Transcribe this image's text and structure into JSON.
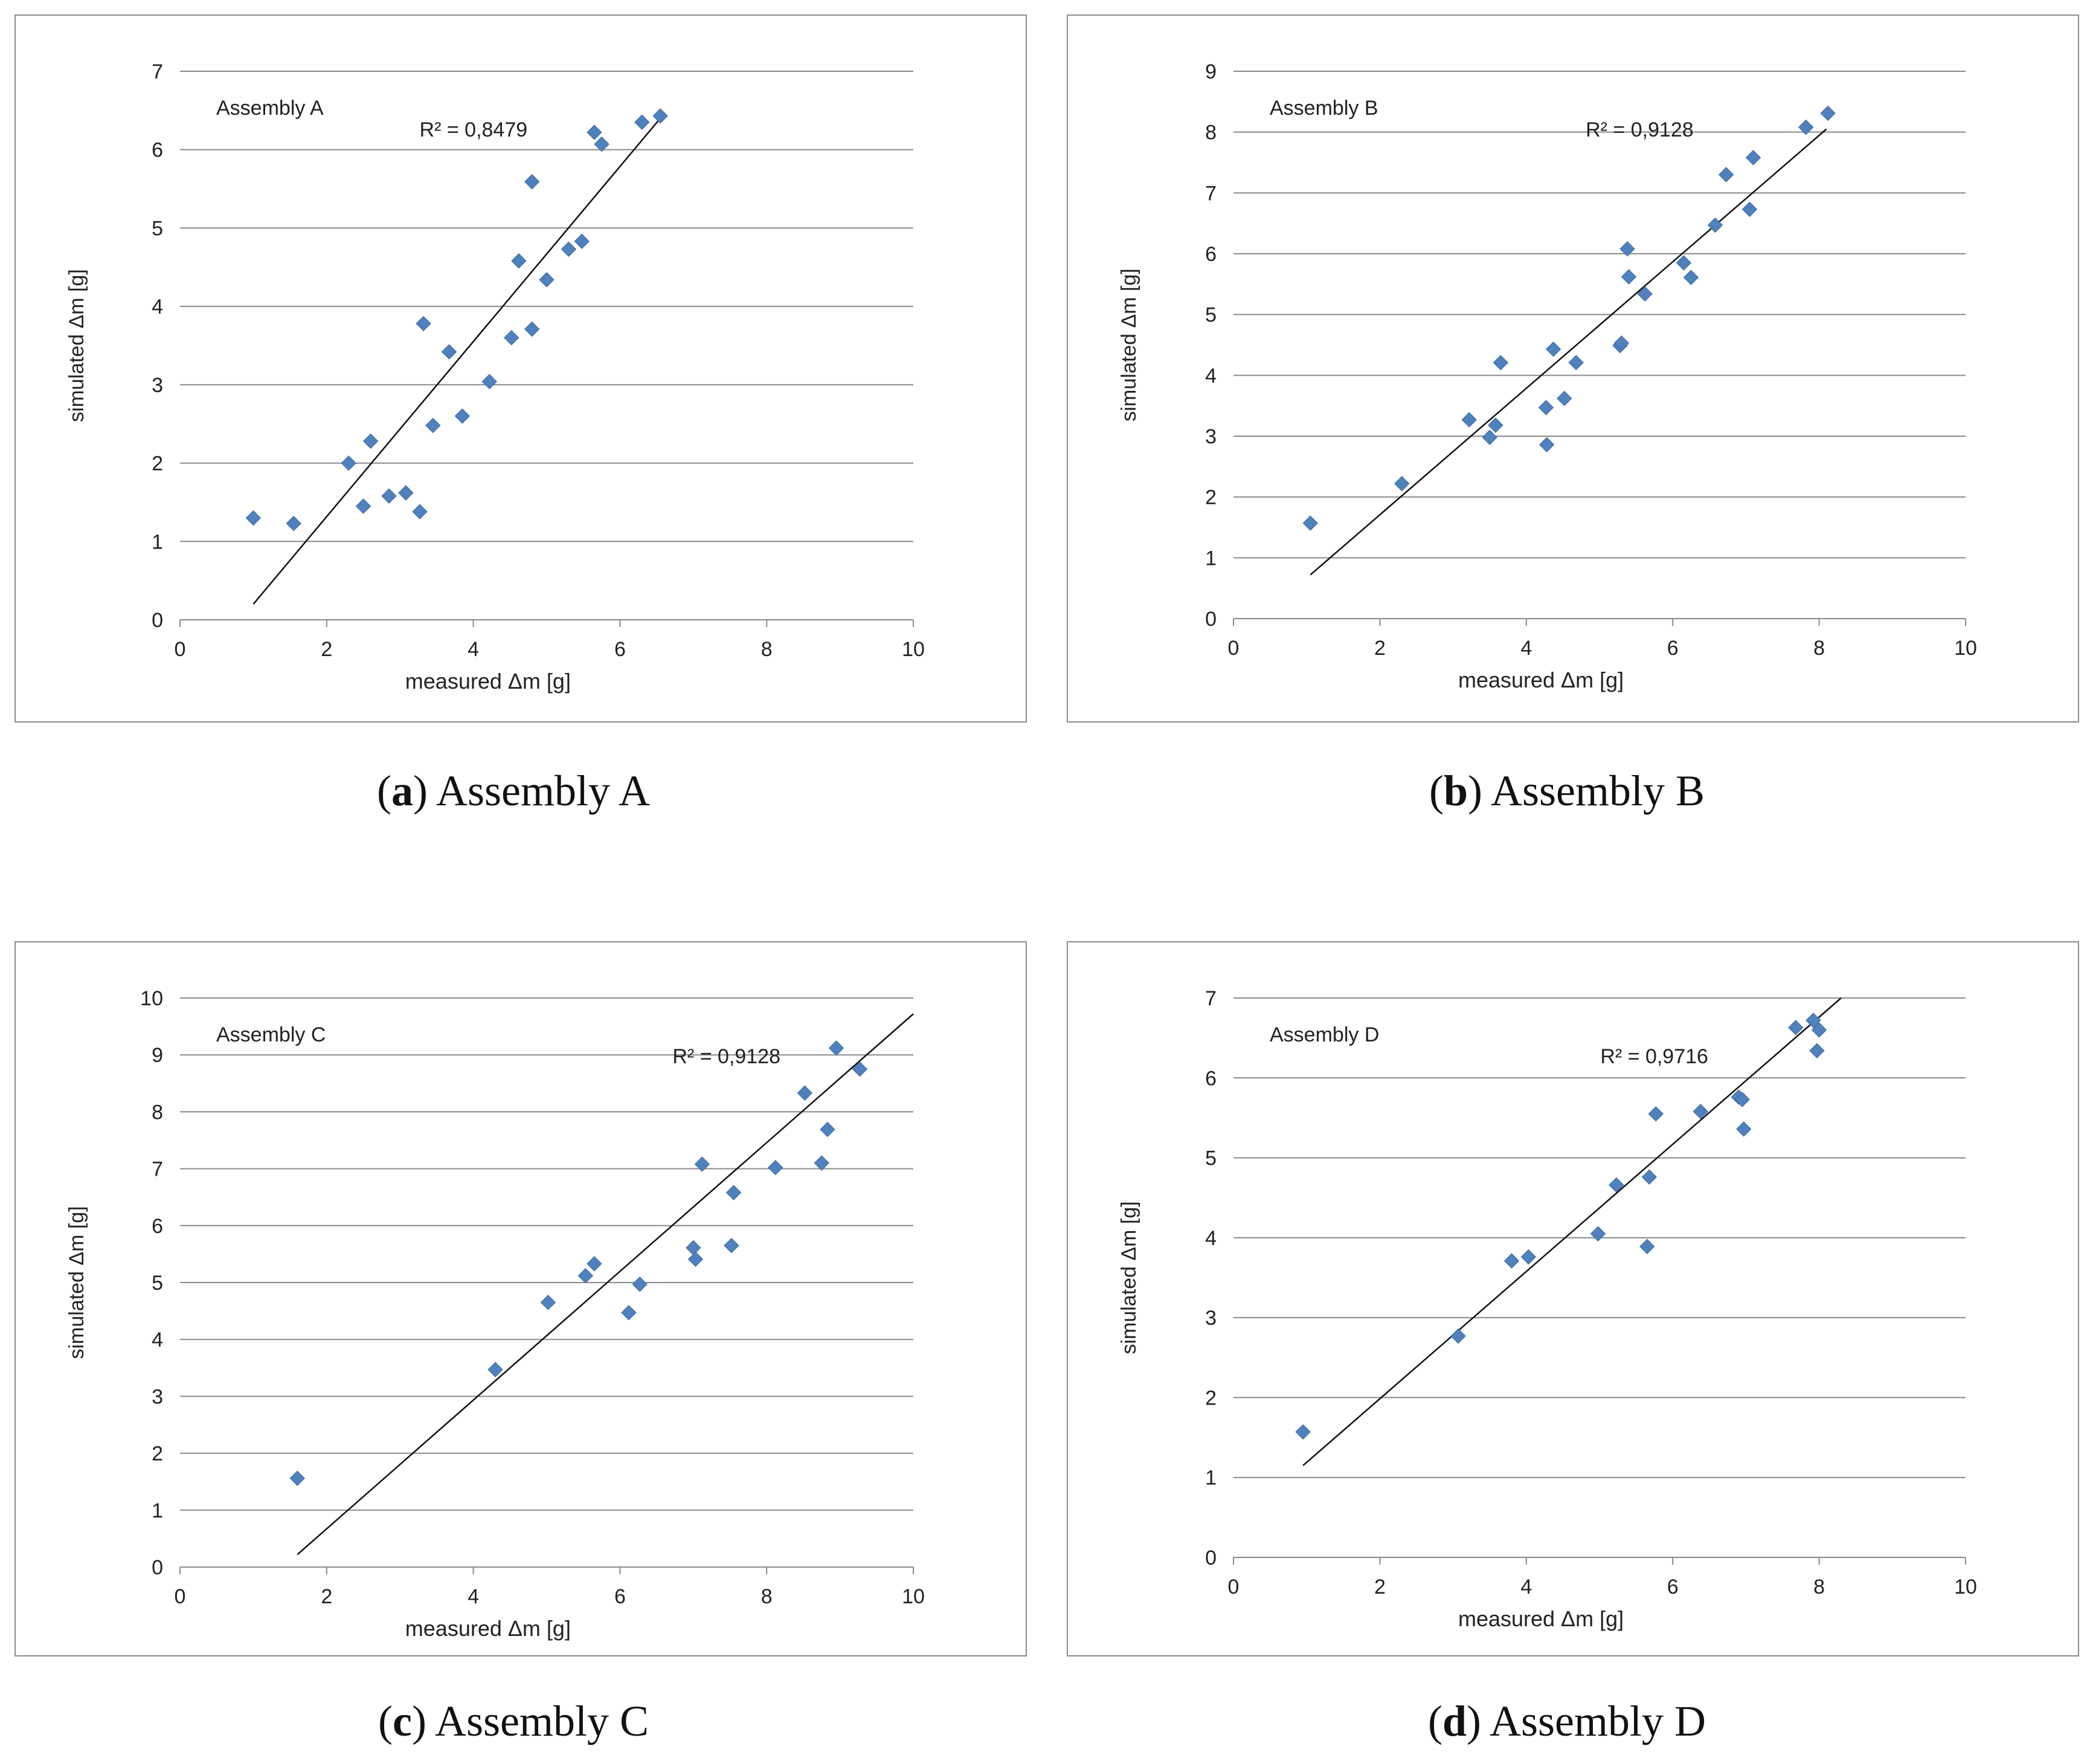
{
  "chart_data": [
    {
      "type": "scatter",
      "title": "Assembly A",
      "caption_letter": "a",
      "caption_text": "Assembly A",
      "xlabel": "measured Δm [g]",
      "ylabel": "simulated  Δm [g]",
      "xlim": [
        0,
        10
      ],
      "ylim": [
        0,
        7
      ],
      "xticks": [
        "0",
        "2",
        "4",
        "6",
        "8",
        "10"
      ],
      "yticks": [
        "0",
        "1",
        "2",
        "3",
        "4",
        "5",
        "6",
        "7"
      ],
      "r2_label": "R² = 0,8479",
      "trendline": {
        "x": [
          1.0,
          6.55
        ],
        "y": [
          0.2,
          6.4
        ]
      },
      "points": [
        [
          1.0,
          1.3
        ],
        [
          1.55,
          1.23
        ],
        [
          2.3,
          2.0
        ],
        [
          2.5,
          1.45
        ],
        [
          2.6,
          2.28
        ],
        [
          2.85,
          1.58
        ],
        [
          3.08,
          1.62
        ],
        [
          3.27,
          1.38
        ],
        [
          3.32,
          3.78
        ],
        [
          3.45,
          2.48
        ],
        [
          3.67,
          3.42
        ],
        [
          3.85,
          2.6
        ],
        [
          4.22,
          3.04
        ],
        [
          4.52,
          3.6
        ],
        [
          4.62,
          4.58
        ],
        [
          4.8,
          5.59
        ],
        [
          4.8,
          3.71
        ],
        [
          5.0,
          4.34
        ],
        [
          5.3,
          4.73
        ],
        [
          5.48,
          4.83
        ],
        [
          5.65,
          6.22
        ],
        [
          5.75,
          6.07
        ],
        [
          6.3,
          6.35
        ],
        [
          6.55,
          6.43
        ]
      ]
    },
    {
      "type": "scatter",
      "title": "Assembly B",
      "caption_letter": "b",
      "caption_text": "Assembly B",
      "xlabel": "measured Δm [g]",
      "ylabel": "simulated  Δm [g]",
      "xlim": [
        0,
        10
      ],
      "ylim": [
        0,
        9
      ],
      "xticks": [
        "0",
        "2",
        "4",
        "6",
        "8",
        "10"
      ],
      "yticks": [
        "0",
        "1",
        "2",
        "3",
        "4",
        "5",
        "6",
        "7",
        "8",
        "9"
      ],
      "r2_label": "R² = 0,9128",
      "trendline": {
        "x": [
          1.05,
          8.1
        ],
        "y": [
          0.72,
          8.05
        ]
      },
      "points": [
        [
          1.05,
          1.57
        ],
        [
          2.3,
          2.22
        ],
        [
          3.22,
          3.27
        ],
        [
          3.5,
          2.98
        ],
        [
          3.58,
          3.18
        ],
        [
          3.65,
          4.21
        ],
        [
          4.27,
          3.47
        ],
        [
          4.28,
          2.86
        ],
        [
          4.37,
          4.43
        ],
        [
          4.52,
          3.62
        ],
        [
          4.68,
          4.21
        ],
        [
          5.28,
          4.49
        ],
        [
          5.3,
          4.53
        ],
        [
          5.38,
          6.08
        ],
        [
          5.4,
          5.62
        ],
        [
          5.62,
          5.34
        ],
        [
          6.15,
          5.85
        ],
        [
          6.25,
          5.61
        ],
        [
          6.58,
          6.47
        ],
        [
          6.73,
          7.3
        ],
        [
          7.05,
          6.73
        ],
        [
          7.1,
          7.58
        ],
        [
          7.82,
          8.08
        ],
        [
          8.12,
          8.31
        ]
      ]
    },
    {
      "type": "scatter",
      "title": "Assembly C",
      "caption_letter": "c",
      "caption_text": "Assembly C",
      "xlabel": "measured Δm [g]",
      "ylabel": "simulated  Δm [g]",
      "xlim": [
        0,
        10
      ],
      "ylim": [
        0,
        10
      ],
      "xticks": [
        "0",
        "2",
        "4",
        "6",
        "8",
        "10"
      ],
      "yticks": [
        "0",
        "1",
        "2",
        "3",
        "4",
        "5",
        "6",
        "7",
        "8",
        "9",
        "10"
      ],
      "r2_label": "R² = 0,9128",
      "trendline": {
        "x": [
          1.6,
          10.0
        ],
        "y": [
          0.22,
          9.72
        ]
      },
      "points": [
        [
          1.6,
          1.56
        ],
        [
          4.3,
          3.47
        ],
        [
          5.02,
          4.65
        ],
        [
          5.53,
          5.12
        ],
        [
          5.65,
          5.33
        ],
        [
          6.12,
          4.47
        ],
        [
          6.27,
          4.97
        ],
        [
          7.0,
          5.61
        ],
        [
          7.03,
          5.41
        ],
        [
          7.12,
          7.08
        ],
        [
          7.52,
          5.65
        ],
        [
          7.55,
          6.58
        ],
        [
          8.12,
          7.02
        ],
        [
          8.52,
          8.33
        ],
        [
          8.75,
          7.1
        ],
        [
          8.83,
          7.69
        ],
        [
          8.95,
          9.12
        ],
        [
          9.27,
          8.75
        ]
      ]
    },
    {
      "type": "scatter",
      "title": "Assembly D",
      "caption_letter": "d",
      "caption_text": "Assembly D",
      "xlabel": "measured Δm [g]",
      "ylabel": "simulated  Δm [g]",
      "xlim": [
        0,
        10
      ],
      "ylim": [
        0,
        7
      ],
      "xticks": [
        "0",
        "2",
        "4",
        "6",
        "8",
        "10"
      ],
      "yticks": [
        "0",
        "1",
        "2",
        "3",
        "4",
        "5",
        "6",
        "7"
      ],
      "r2_label": "R² = 0,9716",
      "trendline": {
        "x": [
          0.95,
          8.3
        ],
        "y": [
          1.15,
          7.0
        ]
      },
      "points": [
        [
          0.95,
          1.57
        ],
        [
          3.07,
          2.77
        ],
        [
          3.8,
          3.71
        ],
        [
          4.03,
          3.76
        ],
        [
          4.98,
          4.05
        ],
        [
          5.23,
          4.66
        ],
        [
          5.65,
          3.89
        ],
        [
          5.68,
          4.76
        ],
        [
          5.77,
          5.55
        ],
        [
          6.38,
          5.58
        ],
        [
          6.9,
          5.76
        ],
        [
          6.95,
          5.73
        ],
        [
          6.97,
          5.36
        ],
        [
          7.68,
          6.63
        ],
        [
          7.92,
          6.72
        ],
        [
          7.97,
          6.34
        ],
        [
          8.0,
          6.6
        ]
      ]
    }
  ]
}
